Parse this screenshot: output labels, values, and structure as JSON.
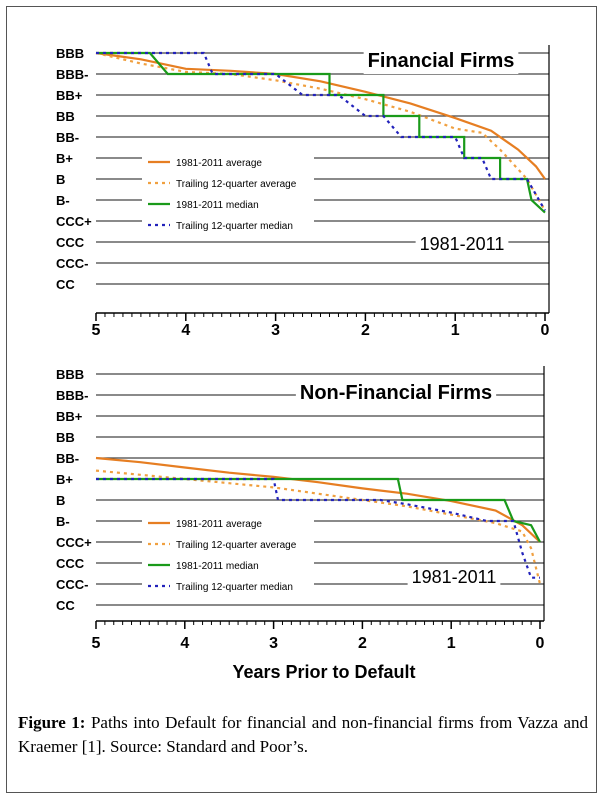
{
  "caption": {
    "label": "Figure 1:",
    "text": "Paths into Default for financial and non-financial firms from Vazza and Kraemer [1]. Source: Standard and Poor’s."
  },
  "chart_data": [
    {
      "type": "line",
      "title": "Financial Firms",
      "annotation": "1981-2011",
      "xlabel": "",
      "ylabel": "",
      "x_ticks": [
        "5",
        "4",
        "3",
        "2",
        "1",
        "0"
      ],
      "y_ticks": [
        "BBB",
        "BBB-",
        "BB+",
        "BB",
        "BB-",
        "B+",
        "B",
        "B-",
        "CCC+",
        "CCC",
        "CCC-",
        "CC"
      ],
      "xlim": [
        5,
        0
      ],
      "y_note": "rating index: 0 = BBB ... 11 = CC",
      "series": [
        {
          "name": "1981-2011 average",
          "color": "#e67e22",
          "style": "solid",
          "points": [
            [
              5,
              0
            ],
            [
              4.5,
              0.3
            ],
            [
              4.0,
              0.75
            ],
            [
              3.5,
              0.85
            ],
            [
              3.0,
              1.0
            ],
            [
              2.5,
              1.35
            ],
            [
              2.0,
              1.85
            ],
            [
              1.5,
              2.4
            ],
            [
              1.0,
              3.1
            ],
            [
              0.6,
              3.7
            ],
            [
              0.3,
              4.6
            ],
            [
              0.1,
              5.4
            ],
            [
              0,
              6.0
            ]
          ]
        },
        {
          "name": "Trailing 12-quarter average",
          "color": "#f0a040",
          "style": "dotted",
          "points": [
            [
              5,
              0
            ],
            [
              4.5,
              0.5
            ],
            [
              4.0,
              0.9
            ],
            [
              3.5,
              1.0
            ],
            [
              3.0,
              1.3
            ],
            [
              2.5,
              1.7
            ],
            [
              2.0,
              2.2
            ],
            [
              1.5,
              2.8
            ],
            [
              1.0,
              3.6
            ],
            [
              0.7,
              3.8
            ],
            [
              0.5,
              4.6
            ],
            [
              0.2,
              6.0
            ],
            [
              0,
              7.5
            ]
          ]
        },
        {
          "name": "1981-2011 median",
          "color": "#1a9a1a",
          "style": "solid",
          "points": [
            [
              5,
              0
            ],
            [
              4.4,
              0
            ],
            [
              4.2,
              1
            ],
            [
              2.4,
              1
            ],
            [
              2.4,
              2
            ],
            [
              1.8,
              2
            ],
            [
              1.8,
              3
            ],
            [
              1.4,
              3
            ],
            [
              1.4,
              4
            ],
            [
              0.9,
              4
            ],
            [
              0.9,
              5
            ],
            [
              0.5,
              5
            ],
            [
              0.5,
              6
            ],
            [
              0.2,
              6
            ],
            [
              0.15,
              7
            ],
            [
              0,
              7.6
            ]
          ]
        },
        {
          "name": "Trailing 12-quarter median",
          "color": "#2222bb",
          "style": "dotted",
          "points": [
            [
              5,
              0
            ],
            [
              3.8,
              0
            ],
            [
              3.7,
              1
            ],
            [
              3.0,
              1
            ],
            [
              2.7,
              2
            ],
            [
              2.3,
              2
            ],
            [
              2.0,
              3
            ],
            [
              1.8,
              3
            ],
            [
              1.6,
              4
            ],
            [
              1.0,
              4
            ],
            [
              0.9,
              5
            ],
            [
              0.7,
              5
            ],
            [
              0.6,
              6
            ],
            [
              0.2,
              6
            ],
            [
              0,
              7.5
            ]
          ]
        }
      ]
    },
    {
      "type": "line",
      "title": "Non-Financial Firms",
      "annotation": "1981-2011",
      "xlabel": "Years Prior to Default",
      "ylabel": "",
      "x_ticks": [
        "5",
        "4",
        "3",
        "2",
        "1",
        "0"
      ],
      "y_ticks": [
        "BBB",
        "BBB-",
        "BB+",
        "BB",
        "BB-",
        "B+",
        "B",
        "B-",
        "CCC+",
        "CCC",
        "CCC-",
        "CC"
      ],
      "xlim": [
        5,
        0
      ],
      "y_note": "rating index: 0 = BBB ... 11 = CC",
      "series": [
        {
          "name": "1981-2011 average",
          "color": "#e67e22",
          "style": "solid",
          "points": [
            [
              5,
              4.0
            ],
            [
              4.5,
              4.2
            ],
            [
              4.0,
              4.45
            ],
            [
              3.5,
              4.7
            ],
            [
              3.0,
              4.9
            ],
            [
              2.5,
              5.15
            ],
            [
              2.0,
              5.45
            ],
            [
              1.5,
              5.7
            ],
            [
              1.0,
              6.05
            ],
            [
              0.5,
              6.5
            ],
            [
              0.2,
              7.2
            ],
            [
              0,
              8.0
            ]
          ]
        },
        {
          "name": "Trailing 12-quarter average",
          "color": "#f0a040",
          "style": "dotted",
          "points": [
            [
              5,
              4.6
            ],
            [
              4.5,
              4.8
            ],
            [
              4.0,
              5.0
            ],
            [
              3.5,
              5.2
            ],
            [
              3.0,
              5.4
            ],
            [
              2.5,
              5.7
            ],
            [
              2.0,
              6.0
            ],
            [
              1.5,
              6.3
            ],
            [
              1.0,
              6.7
            ],
            [
              0.5,
              7.1
            ],
            [
              0.2,
              7.5
            ],
            [
              0.1,
              8.3
            ],
            [
              0,
              10.0
            ]
          ]
        },
        {
          "name": "1981-2011 median",
          "color": "#1a9a1a",
          "style": "solid",
          "points": [
            [
              5,
              5
            ],
            [
              1.6,
              5
            ],
            [
              1.55,
              6
            ],
            [
              0.4,
              6
            ],
            [
              0.3,
              7
            ],
            [
              0.1,
              7.2
            ],
            [
              0,
              8
            ]
          ]
        },
        {
          "name": "Trailing 12-quarter median",
          "color": "#2222bb",
          "style": "dotted",
          "points": [
            [
              5,
              5
            ],
            [
              3.0,
              5
            ],
            [
              2.95,
              6
            ],
            [
              1.8,
              6
            ],
            [
              1.5,
              6.2
            ],
            [
              1.0,
              6.6
            ],
            [
              0.6,
              7.0
            ],
            [
              0.3,
              7.0
            ],
            [
              0.2,
              8.5
            ],
            [
              0.1,
              9.7
            ],
            [
              0,
              9.7
            ]
          ]
        }
      ]
    }
  ]
}
